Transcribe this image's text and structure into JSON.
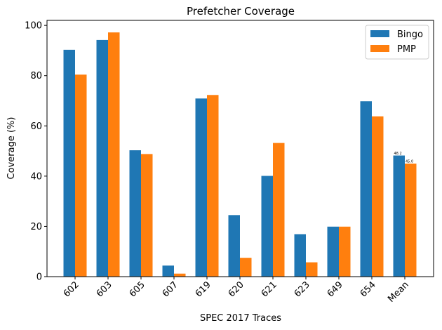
{
  "chart_data": {
    "type": "bar",
    "title": "Prefetcher Coverage",
    "xlabel": "SPEC 2017 Traces",
    "ylabel": "Coverage (%)",
    "categories": [
      "602",
      "603",
      "605",
      "607",
      "619",
      "620",
      "621",
      "623",
      "649",
      "654",
      "Mean"
    ],
    "series": [
      {
        "name": "Bingo",
        "color": "#1f77b4",
        "values": [
          90.3,
          94.2,
          50.3,
          4.4,
          70.9,
          24.5,
          40.1,
          16.9,
          19.9,
          69.8,
          48.2
        ]
      },
      {
        "name": "PMP",
        "color": "#ff7f0e",
        "values": [
          80.4,
          97.2,
          48.8,
          1.2,
          72.3,
          7.5,
          53.2,
          5.7,
          19.9,
          63.8,
          45.0
        ]
      }
    ],
    "data_labels": [
      {
        "category": "Mean",
        "series": "Bingo",
        "text": "48.2"
      },
      {
        "category": "Mean",
        "series": "PMP",
        "text": "45.0"
      }
    ],
    "yticks": [
      0,
      20,
      40,
      60,
      80,
      100
    ],
    "ylim": [
      0,
      102
    ],
    "legend": "top-right",
    "grid": false
  }
}
